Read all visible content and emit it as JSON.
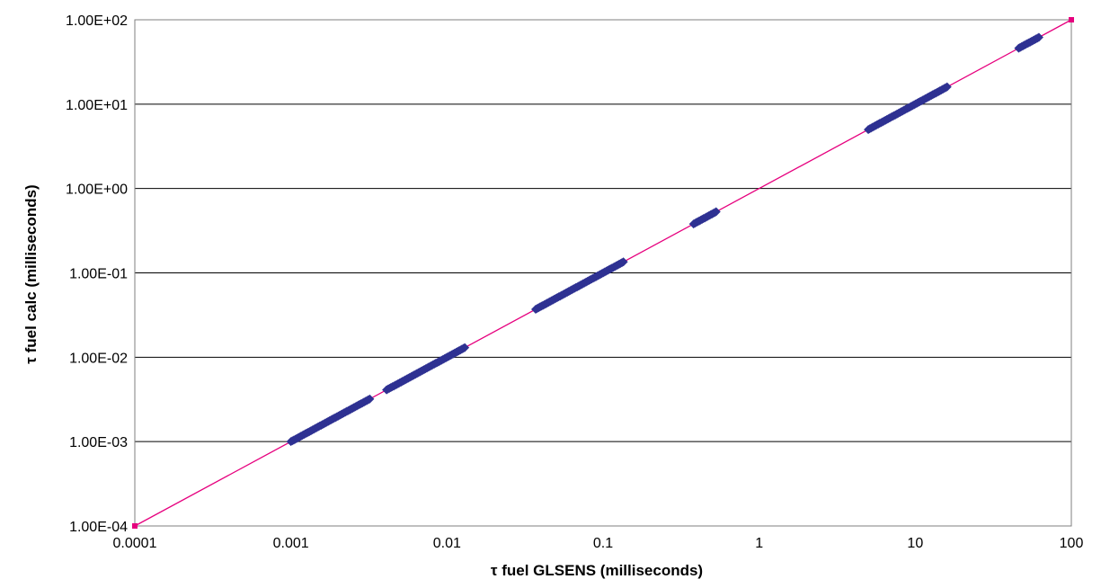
{
  "chart_data": {
    "type": "scatter",
    "title": "",
    "xlabel": "τ fuel GLSENS (milliseconds)",
    "ylabel": "τ fuel calc (milliseconds)",
    "x_scale": "log",
    "y_scale": "log",
    "xlim": [
      0.0001,
      100
    ],
    "ylim": [
      0.0001,
      100
    ],
    "x_ticks": [
      "0.0001",
      "0.001",
      "0.01",
      "0.1",
      "1",
      "10",
      "100"
    ],
    "y_ticks": [
      "1.00E-04",
      "1.00E-03",
      "1.00E-02",
      "1.00E-01",
      "1.00E+00",
      "1.00E+01",
      "1.00E+02"
    ],
    "grid": "horizontal",
    "legend": "none",
    "series": [
      {
        "color": "#2e3192",
        "marker": "diamond",
        "segments": [
          [
            0.001,
            0.0032
          ],
          [
            0.0041,
            0.013
          ],
          [
            0.037,
            0.135
          ],
          [
            0.38,
            0.53
          ],
          [
            5.0,
            16.0
          ],
          [
            46.0,
            62.0
          ]
        ]
      },
      {
        "color": "#e6007e",
        "marker": "square",
        "style": "line",
        "x": [
          0.0001,
          100
        ],
        "y": [
          0.0001,
          100
        ]
      }
    ]
  }
}
